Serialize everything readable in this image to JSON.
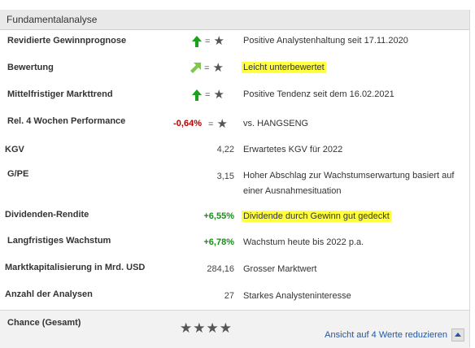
{
  "section": {
    "title": "Fundamentalanalyse"
  },
  "rows": [
    {
      "label": "Revidierte Gewinnprognose",
      "value": "",
      "arrow": "up",
      "eq": "=",
      "star": "★",
      "desc": "Positive Analystenhaltung seit 17.11.2020",
      "highlight": false
    },
    {
      "label": "Bewertung",
      "value": "",
      "arrow": "up-right",
      "eq": "=",
      "star": "★",
      "desc": "Leicht unterbewertet",
      "highlight": true
    },
    {
      "label": "Mittelfristiger Markttrend",
      "value": "",
      "arrow": "up",
      "eq": "=",
      "star": "★",
      "desc": "Positive Tendenz seit dem 16.02.2021",
      "highlight": false
    },
    {
      "label": "Rel. 4 Wochen Performance",
      "value": "-0,64%",
      "arrow": "none",
      "eq": "=",
      "star": "★",
      "desc": "vs. HANGSENG",
      "highlight": false
    },
    {
      "label": "KGV",
      "value": "4,22",
      "desc": "Erwartetes KGV für 2022",
      "highlight": false
    },
    {
      "label": "G/PE",
      "value": "3,15",
      "desc": "Hoher Abschlag zur Wachstumserwartung basiert auf einer Ausnahmesituation",
      "highlight": false
    },
    {
      "label": "Dividenden-Rendite",
      "value": "+6,55%",
      "desc": "Dividende durch Gewinn gut gedeckt",
      "highlight": true
    },
    {
      "label": "Langfristiges Wachstum",
      "value": "+6,78%",
      "desc": "Wachstum heute bis 2022 p.a.",
      "highlight": false
    },
    {
      "label": "Marktkapitalisierung in Mrd. USD",
      "value": "284,16",
      "desc": "Grosser Marktwert",
      "highlight": false
    },
    {
      "label": "Anzahl der Analysen",
      "value": "27",
      "desc": "Starkes Analysteninteresse",
      "highlight": false
    }
  ],
  "chance": {
    "label": "Chance (Gesamt)",
    "stars": "★★★★",
    "rating": 4
  },
  "footer": {
    "reduce_link": "Ansicht auf 4 Werte reduzieren"
  },
  "colors": {
    "arrow_green": "#1aa31a",
    "arrow_light_green": "#7fc74a",
    "highlight": "#ffff3d",
    "negative": "#b40000",
    "positive": "#1a8c1a"
  }
}
